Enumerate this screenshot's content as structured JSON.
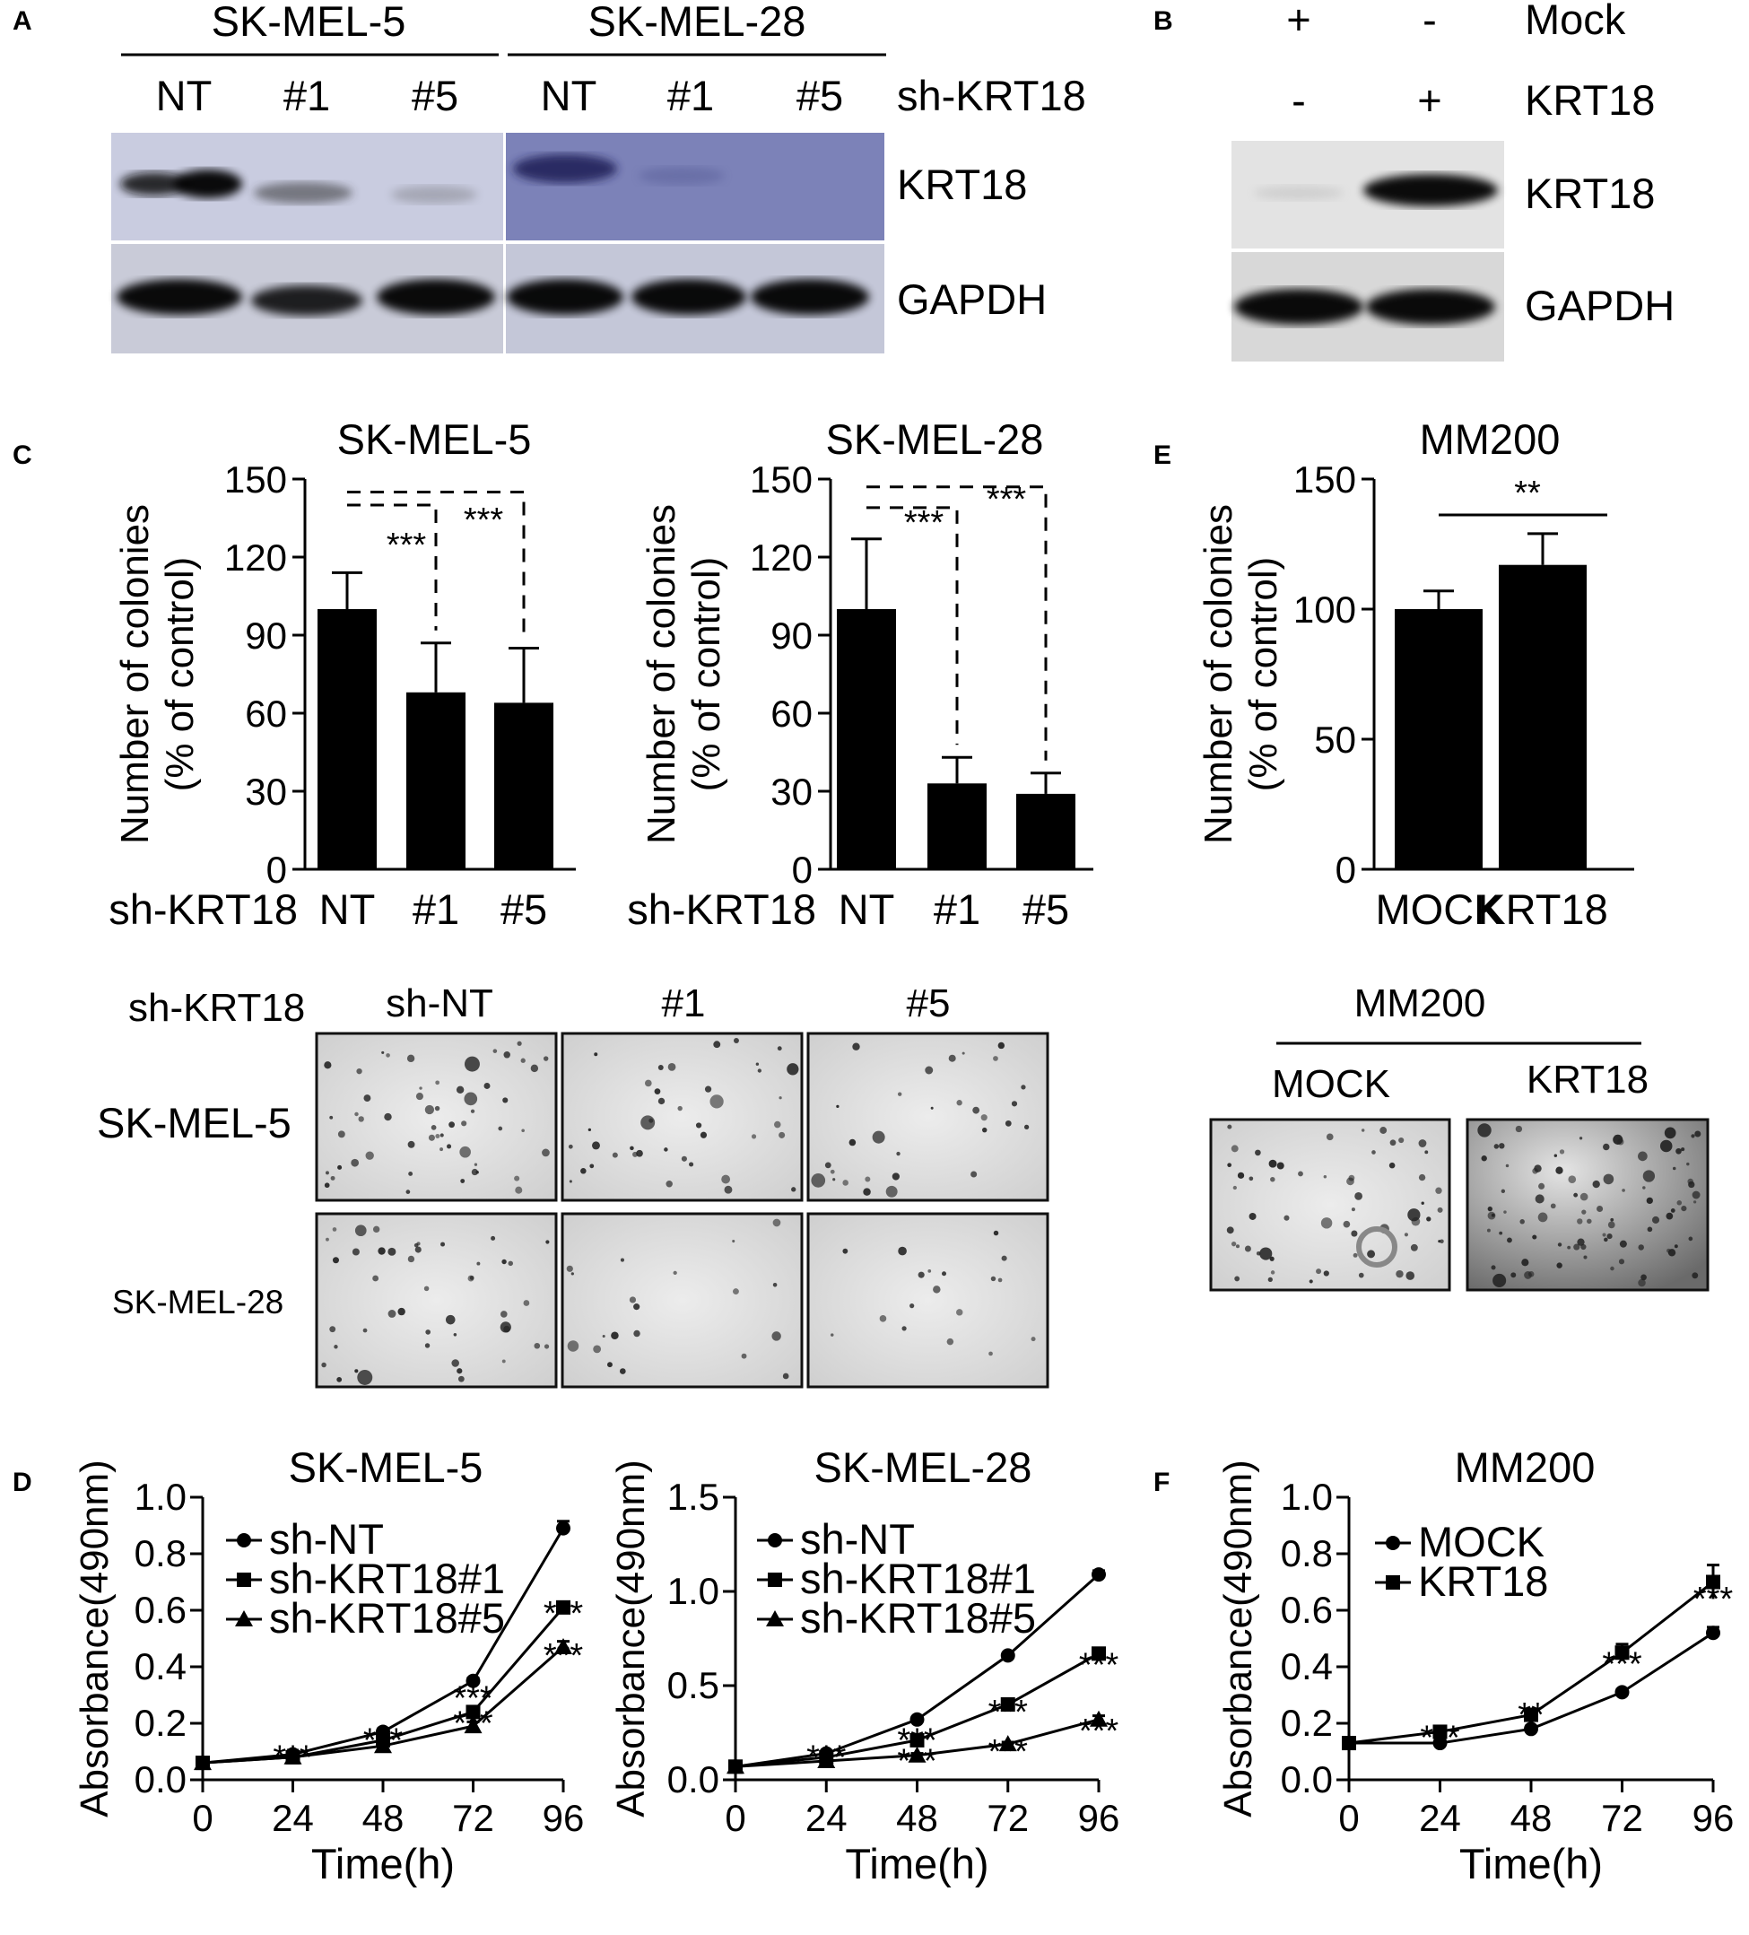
{
  "panel_letters": [
    "A",
    "B",
    "C",
    "D",
    "E",
    "F"
  ],
  "panelA": {
    "cell_lines": [
      "SK-MEL-5",
      "SK-MEL-28"
    ],
    "lane_labels": [
      "NT",
      "#1",
      "#5",
      "NT",
      "#1",
      "#5"
    ],
    "treatment_label": "sh-KRT18",
    "rows": [
      "KRT18",
      "GAPDH"
    ],
    "bands": {
      "skmel5_krt18": [
        0.85,
        0.45,
        0.2
      ],
      "skmel28_krt18": [
        0.8,
        0.12,
        0.05
      ],
      "skmel5_gapdh": [
        0.95,
        0.85,
        0.95
      ],
      "skmel28_gapdh": [
        0.95,
        0.95,
        0.95
      ]
    }
  },
  "panelB": {
    "conditions": [
      {
        "label": "Mock",
        "signs": [
          "+",
          "-"
        ]
      },
      {
        "label": "KRT18",
        "signs": [
          "-",
          "+"
        ]
      }
    ],
    "rows": [
      "KRT18",
      "GAPDH"
    ],
    "bands": {
      "krt18": [
        0.05,
        0.95
      ],
      "gapdh": [
        0.95,
        0.95
      ]
    }
  },
  "panelC_images": {
    "row_header": "sh-KRT18",
    "columns": [
      "sh-NT",
      "#1",
      "#5"
    ],
    "rows": [
      "SK-MEL-5",
      "SK-MEL-28"
    ]
  },
  "panelE_images": {
    "title": "MM200",
    "columns": [
      "MOCK",
      "KRT18"
    ]
  },
  "chart_data": [
    {
      "panel": "C",
      "type": "bar",
      "title": "SK-MEL-5",
      "ylabel": [
        "Number of colonies",
        "(% of control)"
      ],
      "xlabel_prefix": "sh-KRT18",
      "categories": [
        "NT",
        "#1",
        "#5"
      ],
      "values": [
        100,
        68,
        64
      ],
      "errors": [
        14,
        19,
        21
      ],
      "ylim": [
        0,
        150
      ],
      "yticks": [
        0,
        30,
        60,
        90,
        120,
        150
      ],
      "significance": [
        "***",
        "***"
      ]
    },
    {
      "panel": "C",
      "type": "bar",
      "title": "SK-MEL-28",
      "ylabel": [
        "Number of colonies",
        "(% of control)"
      ],
      "xlabel_prefix": "sh-KRT18",
      "categories": [
        "NT",
        "#1",
        "#5"
      ],
      "values": [
        100,
        33,
        29
      ],
      "errors": [
        27,
        10,
        8
      ],
      "ylim": [
        0,
        150
      ],
      "yticks": [
        0,
        30,
        60,
        90,
        120,
        150
      ],
      "significance": [
        "***",
        "***"
      ]
    },
    {
      "panel": "E",
      "type": "bar",
      "title": "MM200",
      "ylabel": [
        "Number of colonies",
        "(% of control)"
      ],
      "categories": [
        "MOCK",
        "KRT18"
      ],
      "values": [
        100,
        117
      ],
      "errors": [
        7,
        12
      ],
      "ylim": [
        0,
        150
      ],
      "yticks": [
        0,
        50,
        100,
        150
      ],
      "significance": [
        "**"
      ]
    },
    {
      "panel": "D",
      "type": "line",
      "title": "SK-MEL-5",
      "xlabel": "Time(h)",
      "ylabel": "Absorbance(490nm)",
      "x": [
        0,
        24,
        48,
        72,
        96
      ],
      "xlim": [
        0,
        96
      ],
      "ylim": [
        0,
        1.0
      ],
      "yticks": [
        0.0,
        0.2,
        0.4,
        0.6,
        0.8,
        1.0
      ],
      "yticklabels": [
        "0.0",
        "0.2",
        "0.4",
        "0.6",
        "0.8",
        "1.0"
      ],
      "legend": "top-left",
      "series": [
        {
          "name": "sh-NT",
          "marker": "circle",
          "values": [
            0.06,
            0.09,
            0.17,
            0.35,
            0.89
          ],
          "errors": [
            0.005,
            0.005,
            0.01,
            0.01,
            0.025
          ]
        },
        {
          "name": "sh-KRT18#1",
          "marker": "square",
          "values": [
            0.06,
            0.08,
            0.14,
            0.24,
            0.61
          ],
          "errors": [
            0.005,
            0.005,
            0.01,
            0.015,
            0.02
          ]
        },
        {
          "name": "sh-KRT18#5",
          "marker": "triangle",
          "values": [
            0.06,
            0.08,
            0.12,
            0.19,
            0.47
          ],
          "errors": [
            0.005,
            0.005,
            0.01,
            0.015,
            0.02
          ]
        }
      ],
      "annotations": [
        {
          "x": 24,
          "y": 0.04,
          "text": "***"
        },
        {
          "x": 48,
          "y": 0.1,
          "text": "***"
        },
        {
          "x": 72,
          "y": 0.25,
          "text": "***"
        },
        {
          "x": 72,
          "y": 0.16,
          "text": "***"
        },
        {
          "x": 96,
          "y": 0.55,
          "text": "***"
        },
        {
          "x": 96,
          "y": 0.4,
          "text": "***"
        }
      ]
    },
    {
      "panel": "D",
      "type": "line",
      "title": "SK-MEL-28",
      "xlabel": "Time(h)",
      "ylabel": "Absorbance(490nm)",
      "x": [
        0,
        24,
        48,
        72,
        96
      ],
      "xlim": [
        0,
        96
      ],
      "ylim": [
        0,
        1.5
      ],
      "yticks": [
        0.0,
        0.5,
        1.0,
        1.5
      ],
      "yticklabels": [
        "0.0",
        "0.5",
        "1.0",
        "1.5"
      ],
      "legend": "top-left",
      "series": [
        {
          "name": "sh-NT",
          "marker": "circle",
          "values": [
            0.07,
            0.14,
            0.32,
            0.66,
            1.09
          ],
          "errors": [
            0.005,
            0.01,
            0.01,
            0.01,
            0.02
          ]
        },
        {
          "name": "sh-KRT18#1",
          "marker": "square",
          "values": [
            0.07,
            0.12,
            0.21,
            0.4,
            0.67
          ],
          "errors": [
            0.005,
            0.01,
            0.01,
            0.01,
            0.02
          ]
        },
        {
          "name": "sh-KRT18#5",
          "marker": "triangle",
          "values": [
            0.07,
            0.1,
            0.13,
            0.19,
            0.32
          ],
          "errors": [
            0.005,
            0.01,
            0.01,
            0.01,
            0.02
          ]
        }
      ],
      "annotations": [
        {
          "x": 24,
          "y": 0.06,
          "text": "***"
        },
        {
          "x": 48,
          "y": 0.15,
          "text": "***"
        },
        {
          "x": 48,
          "y": 0.04,
          "text": "***"
        },
        {
          "x": 72,
          "y": 0.3,
          "text": "***"
        },
        {
          "x": 72,
          "y": 0.09,
          "text": "***"
        },
        {
          "x": 96,
          "y": 0.55,
          "text": "***"
        },
        {
          "x": 96,
          "y": 0.2,
          "text": "***"
        }
      ]
    },
    {
      "panel": "F",
      "type": "line",
      "title": "MM200",
      "xlabel": "Time(h)",
      "ylabel": "Absorbance(490nm)",
      "x": [
        0,
        24,
        48,
        72,
        96
      ],
      "xlim": [
        0,
        96
      ],
      "ylim": [
        0,
        1.0
      ],
      "yticks": [
        0.0,
        0.2,
        0.4,
        0.6,
        0.8,
        1.0
      ],
      "yticklabels": [
        "0.0",
        "0.2",
        "0.4",
        "0.6",
        "0.8",
        "1.0"
      ],
      "legend": "top-left",
      "series": [
        {
          "name": "MOCK",
          "marker": "circle",
          "values": [
            0.13,
            0.13,
            0.18,
            0.31,
            0.52
          ],
          "errors": [
            0.01,
            0.01,
            0.01,
            0.01,
            0.02
          ]
        },
        {
          "name": "KRT18",
          "marker": "square",
          "values": [
            0.13,
            0.17,
            0.23,
            0.45,
            0.7
          ],
          "errors": [
            0.01,
            0.01,
            0.015,
            0.03,
            0.06
          ]
        }
      ],
      "annotations": [
        {
          "x": 24,
          "y": 0.11,
          "text": "***"
        },
        {
          "x": 48,
          "y": 0.19,
          "text": "**"
        },
        {
          "x": 72,
          "y": 0.37,
          "text": "***"
        },
        {
          "x": 96,
          "y": 0.6,
          "text": "***"
        }
      ]
    }
  ]
}
